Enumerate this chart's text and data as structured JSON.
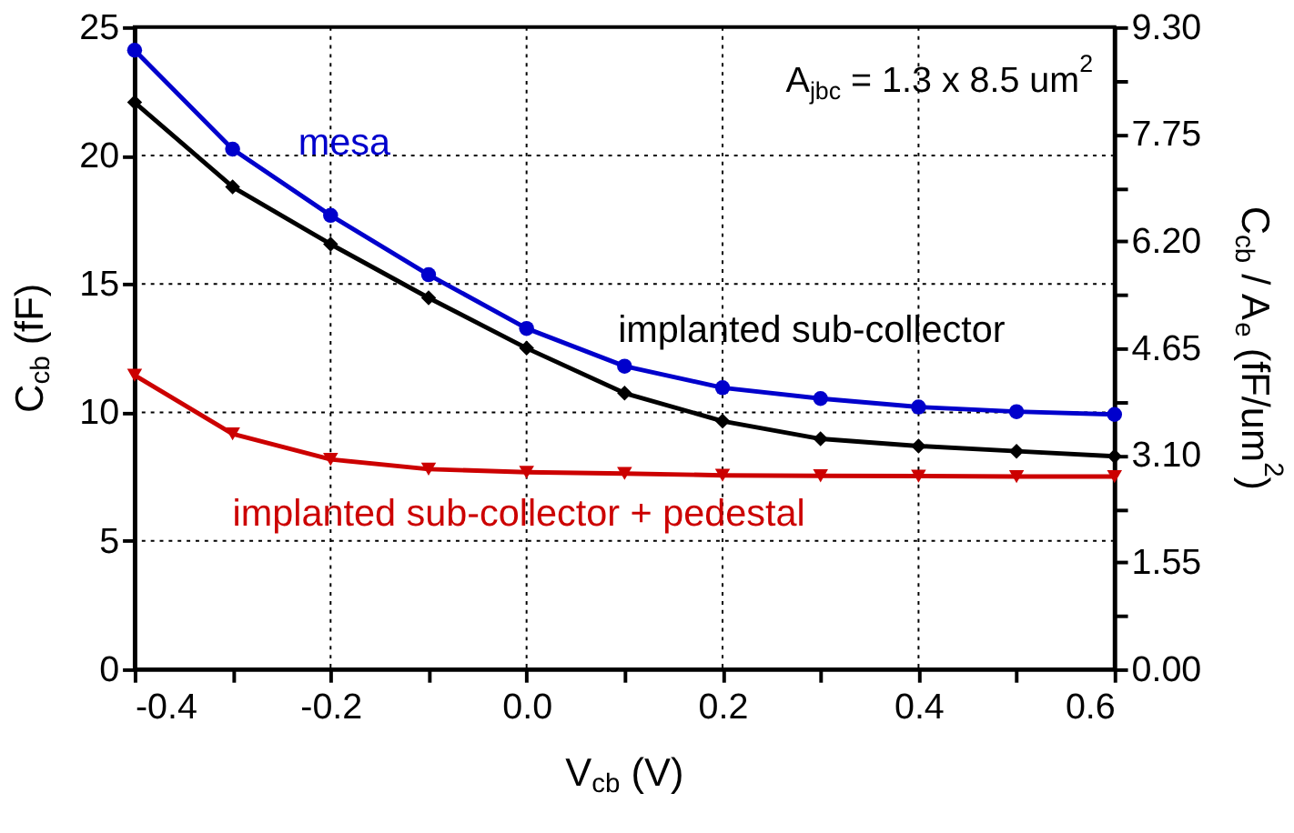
{
  "chart_data": {
    "type": "line",
    "xlabel": "V$_{cb}$ (V)",
    "ylabel": "C$_{cb}$ (fF)",
    "y2label": "C$_{cb}$ / A$_{e}$ (fF/um$^{2}$)",
    "x": [
      -0.4,
      -0.3,
      -0.2,
      -0.1,
      0.0,
      0.1,
      0.2,
      0.3,
      0.4,
      0.5,
      0.6
    ],
    "series": [
      {
        "name": "mesa",
        "color": "#0000cc",
        "marker": "circle",
        "values": [
          24.1,
          20.25,
          17.67,
          15.36,
          13.27,
          11.8,
          10.96,
          10.54,
          10.21,
          10.03,
          9.92
        ]
      },
      {
        "name": "implanted sub-collector",
        "color": "#000000",
        "marker": "diamond",
        "values": [
          22.07,
          18.78,
          16.55,
          14.46,
          12.5,
          10.75,
          9.66,
          8.97,
          8.69,
          8.49,
          8.29
        ]
      },
      {
        "name": "implanted sub-collector + pedestal",
        "color": "#cc0000",
        "marker": "triangle",
        "values": [
          11.45,
          9.16,
          8.17,
          7.79,
          7.67,
          7.62,
          7.55,
          7.53,
          7.52,
          7.5,
          7.5
        ]
      }
    ],
    "annotations": [
      "A$_{jbc}$ = 1.3 x 8.5 um$^{2}$"
    ],
    "xlim": [
      -0.4,
      0.6
    ],
    "xticks": [
      {
        "value": -0.4,
        "label": "-0.4"
      },
      {
        "value": -0.3,
        "label": null
      },
      {
        "value": -0.2,
        "label": "-0.2"
      },
      {
        "value": -0.1,
        "label": null
      },
      {
        "value": 0.0,
        "label": "0.0"
      },
      {
        "value": 0.1,
        "label": null
      },
      {
        "value": 0.2,
        "label": "0.2"
      },
      {
        "value": 0.3,
        "label": null
      },
      {
        "value": 0.4,
        "label": "0.4"
      },
      {
        "value": 0.5,
        "label": null
      },
      {
        "value": 0.6,
        "label": "0.6"
      }
    ],
    "ylim": [
      0,
      25
    ],
    "yticks": [
      0,
      5,
      10,
      15,
      20,
      25
    ],
    "y2lim": [
      0,
      9.3
    ],
    "y2ticks": [
      {
        "value": 0,
        "label": "0.00"
      },
      {
        "value": 0.775,
        "label": null
      },
      {
        "value": 1.55,
        "label": "1.55"
      },
      {
        "value": 2.325,
        "label": null
      },
      {
        "value": 3.1,
        "label": "3.10"
      },
      {
        "value": 3.875,
        "label": null
      },
      {
        "value": 4.65,
        "label": "4.65"
      },
      {
        "value": 5.425,
        "label": null
      },
      {
        "value": 6.2,
        "label": "6.20"
      },
      {
        "value": 6.975,
        "label": null
      },
      {
        "value": 7.75,
        "label": "7.75"
      },
      {
        "value": 8.525,
        "label": null
      },
      {
        "value": 9.3,
        "label": "9.30"
      }
    ],
    "grid": true,
    "line_style": "solid"
  }
}
